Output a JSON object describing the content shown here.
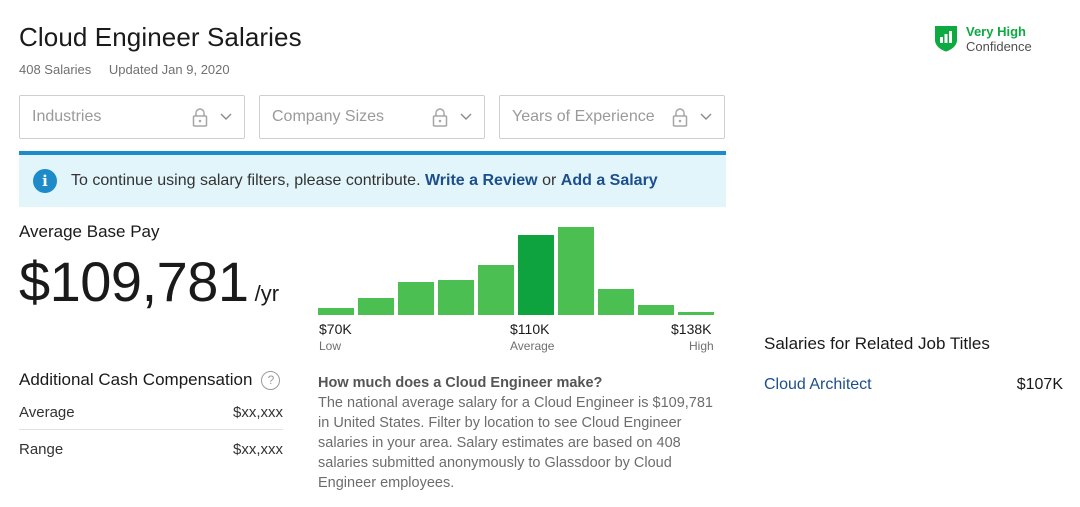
{
  "header": {
    "title": "Cloud Engineer Salaries",
    "salary_count": "408 Salaries",
    "updated": "Updated Jan 9, 2020"
  },
  "confidence": {
    "level": "Very High",
    "label": "Confidence",
    "icon": "shield-bar-chart-icon",
    "color": "#0caa41"
  },
  "filters": [
    {
      "label": "Industries",
      "icon": "lock-icon"
    },
    {
      "label": "Company Sizes",
      "icon": "lock-icon"
    },
    {
      "label": "Years of Experience",
      "icon": "lock-icon"
    }
  ],
  "banner": {
    "text": "To continue using salary filters, please contribute.",
    "link1": "Write a Review",
    "connector": "or",
    "link2": "Add a Salary",
    "icon": "info-icon",
    "accent": "#1d8bc9"
  },
  "pay": {
    "label": "Average Base Pay",
    "value": "$109,781",
    "unit": "/yr"
  },
  "chart_data": {
    "type": "bar",
    "bins": [
      1,
      2,
      3,
      4,
      5,
      6,
      7,
      8,
      9,
      10
    ],
    "values": [
      7,
      17,
      33,
      35,
      50,
      80,
      88,
      26,
      10,
      3
    ],
    "highlight_index": 5,
    "ylim": [
      0,
      100
    ],
    "colors": {
      "bar": "#4cbf52",
      "highlight": "#0fa33f"
    },
    "ticks": [
      {
        "value": "$70K",
        "sub": "Low"
      },
      {
        "value": "$110K",
        "sub": "Average"
      },
      {
        "value": "$138K",
        "sub": "High"
      }
    ]
  },
  "additional_cash": {
    "title": "Additional Cash Compensation",
    "help_icon": "question-circle-icon",
    "rows": [
      {
        "label": "Average",
        "value": "$xx,xxx"
      },
      {
        "label": "Range",
        "value": "$xx,xxx"
      }
    ]
  },
  "faq": {
    "question": "How much does a Cloud Engineer make?",
    "answer": "The national average salary for a Cloud Engineer is $109,781 in United States. Filter by location to see Cloud Engineer salaries in your area. Salary estimates are based on 408 salaries submitted anonymously to Glassdoor by Cloud Engineer employees."
  },
  "related": {
    "title": "Salaries for Related Job Titles",
    "items": [
      {
        "title": "Cloud Architect",
        "pay": "$107K"
      }
    ]
  }
}
